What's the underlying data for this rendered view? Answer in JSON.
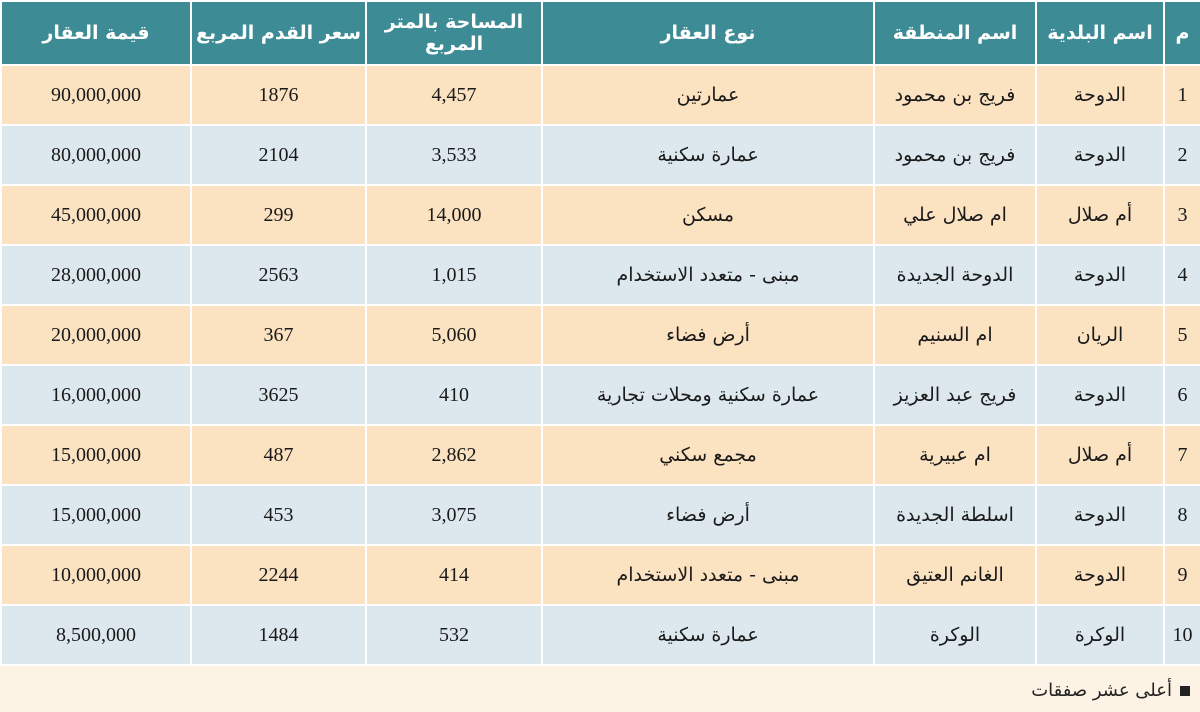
{
  "table": {
    "headers": {
      "num": "م",
      "municipality": "اسم البلدية",
      "area_name": "اسم المنطقة",
      "property_type": "نوع العقار",
      "area_sqm": "المساحة بالمتر المربع",
      "price_sqft": "سعر القدم المربع",
      "value": "قيمة العقار"
    },
    "rows": [
      {
        "num": "1",
        "municipality": "الدوحة",
        "area_name": "فريج بن محمود",
        "property_type": "عمارتين",
        "area_sqm": "4,457",
        "price_sqft": "1876",
        "value": "90,000,000"
      },
      {
        "num": "2",
        "municipality": "الدوحة",
        "area_name": "فريج بن محمود",
        "property_type": "عمارة سكنية",
        "area_sqm": "3,533",
        "price_sqft": "2104",
        "value": "80,000,000"
      },
      {
        "num": "3",
        "municipality": "أم صلال",
        "area_name": "ام صلال علي",
        "property_type": "مسكن",
        "area_sqm": "14,000",
        "price_sqft": "299",
        "value": "45,000,000"
      },
      {
        "num": "4",
        "municipality": "الدوحة",
        "area_name": "الدوحة الجديدة",
        "property_type": "مبنى - متعدد الاستخدام",
        "area_sqm": "1,015",
        "price_sqft": "2563",
        "value": "28,000,000"
      },
      {
        "num": "5",
        "municipality": "الريان",
        "area_name": "ام السنيم",
        "property_type": "أرض فضاء",
        "area_sqm": "5,060",
        "price_sqft": "367",
        "value": "20,000,000"
      },
      {
        "num": "6",
        "municipality": "الدوحة",
        "area_name": "فريج عبد العزيز",
        "property_type": "عمارة سكنية ومحلات تجارية",
        "area_sqm": "410",
        "price_sqft": "3625",
        "value": "16,000,000"
      },
      {
        "num": "7",
        "municipality": "أم صلال",
        "area_name": "ام عبيرية",
        "property_type": "مجمع سكني",
        "area_sqm": "2,862",
        "price_sqft": "487",
        "value": "15,000,000"
      },
      {
        "num": "8",
        "municipality": "الدوحة",
        "area_name": "اسلطة الجديدة",
        "property_type": "أرض فضاء",
        "area_sqm": "3,075",
        "price_sqft": "453",
        "value": "15,000,000"
      },
      {
        "num": "9",
        "municipality": "الدوحة",
        "area_name": "الغانم العتيق",
        "property_type": "مبنى - متعدد الاستخدام",
        "area_sqm": "414",
        "price_sqft": "2244",
        "value": "10,000,000"
      },
      {
        "num": "10",
        "municipality": "الوكرة",
        "area_name": "الوكرة",
        "property_type": "عمارة سكنية",
        "area_sqm": "532",
        "price_sqft": "1484",
        "value": "8,500,000"
      }
    ]
  },
  "footnote": "أعلى عشر صفقات",
  "colors": {
    "header_bg": "#3d8c95",
    "row_odd": "#fbe2c0",
    "row_even": "#dde8ee",
    "page_bg": "#fdf3e4"
  }
}
